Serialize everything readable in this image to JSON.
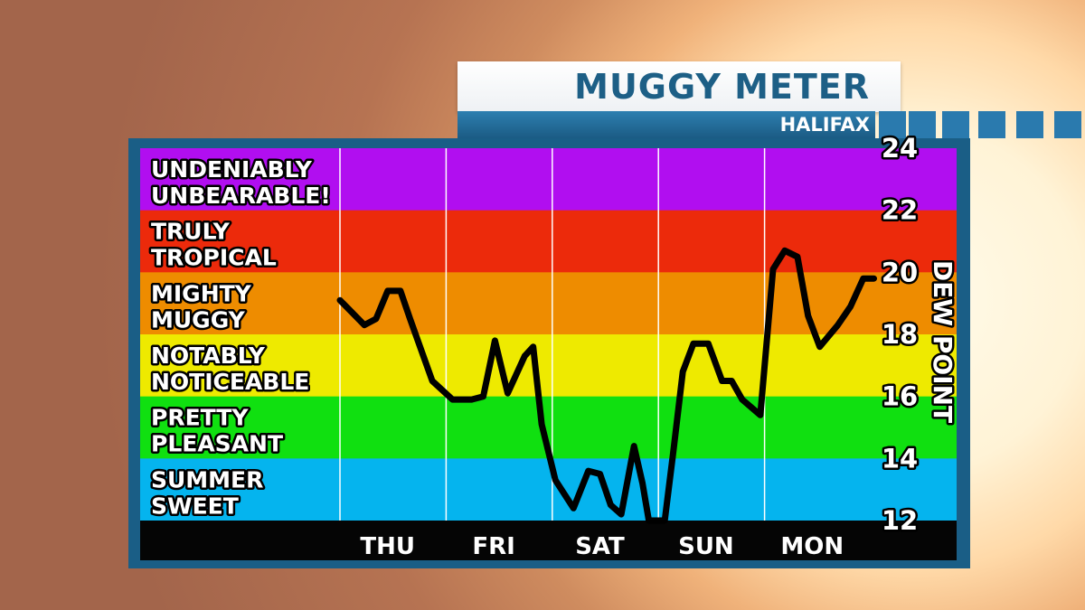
{
  "header": {
    "title": "MUGGY METER",
    "location": "HALIFAX"
  },
  "colors": {
    "frame": "#1a5e86",
    "title_text": "#1d5f86",
    "line": "#000000",
    "zone_purple": "#b10ef0",
    "zone_red": "#ec2a0b",
    "zone_orange": "#ee8c00",
    "zone_yellow": "#eeea00",
    "zone_green": "#10e010",
    "zone_blue": "#05b4ee"
  },
  "chart_data": {
    "type": "line",
    "title": "MUGGY METER",
    "subtitle": "HALIFAX",
    "ylabel": "DEW POINT",
    "ylim": [
      12,
      24
    ],
    "yticks": [
      24,
      22,
      20,
      18,
      16,
      14,
      12
    ],
    "xlim": [
      0,
      5
    ],
    "categories": [
      "THU",
      "FRI",
      "SAT",
      "SUN",
      "MON"
    ],
    "zones": [
      {
        "lines": [
          "UNDENIABLY",
          "UNBEARABLE!"
        ],
        "color": "#b10ef0"
      },
      {
        "lines": [
          "TRULY",
          "TROPICAL"
        ],
        "color": "#ec2a0b"
      },
      {
        "lines": [
          "MIGHTY",
          "MUGGY"
        ],
        "color": "#ee8c00"
      },
      {
        "lines": [
          "NOTABLY",
          "NOTICEABLE"
        ],
        "color": "#eeea00"
      },
      {
        "lines": [
          "PRETTY",
          "PLEASANT"
        ],
        "color": "#10e010"
      },
      {
        "lines": [
          "SUMMER",
          "SWEET"
        ],
        "color": "#05b4ee"
      }
    ],
    "grid": true,
    "series": [
      {
        "x": [
          0.0,
          0.23,
          0.34,
          0.45,
          0.57,
          0.66,
          0.87,
          1.06,
          1.24,
          1.35,
          1.46,
          1.58,
          1.74,
          1.82,
          1.9,
          2.03,
          2.2,
          2.34,
          2.45,
          2.55,
          2.65,
          2.77,
          2.85,
          2.91,
          3.06,
          3.14,
          3.23,
          3.33,
          3.47,
          3.6,
          3.69,
          3.79,
          3.96,
          4.08,
          4.19,
          4.31,
          4.41,
          4.52,
          4.69,
          4.81,
          4.93,
          5.03
        ],
        "values": [
          19.1,
          18.3,
          18.5,
          19.4,
          19.4,
          18.5,
          16.5,
          15.9,
          15.9,
          16.0,
          17.8,
          16.1,
          17.3,
          17.6,
          15.1,
          13.3,
          12.4,
          13.6,
          13.5,
          12.5,
          12.2,
          14.4,
          13.2,
          12.0,
          12.0,
          14.2,
          16.8,
          17.7,
          17.7,
          16.5,
          16.5,
          15.9,
          15.4,
          20.1,
          20.7,
          20.5,
          18.6,
          17.6,
          18.3,
          18.9,
          19.8,
          19.8
        ]
      }
    ]
  }
}
